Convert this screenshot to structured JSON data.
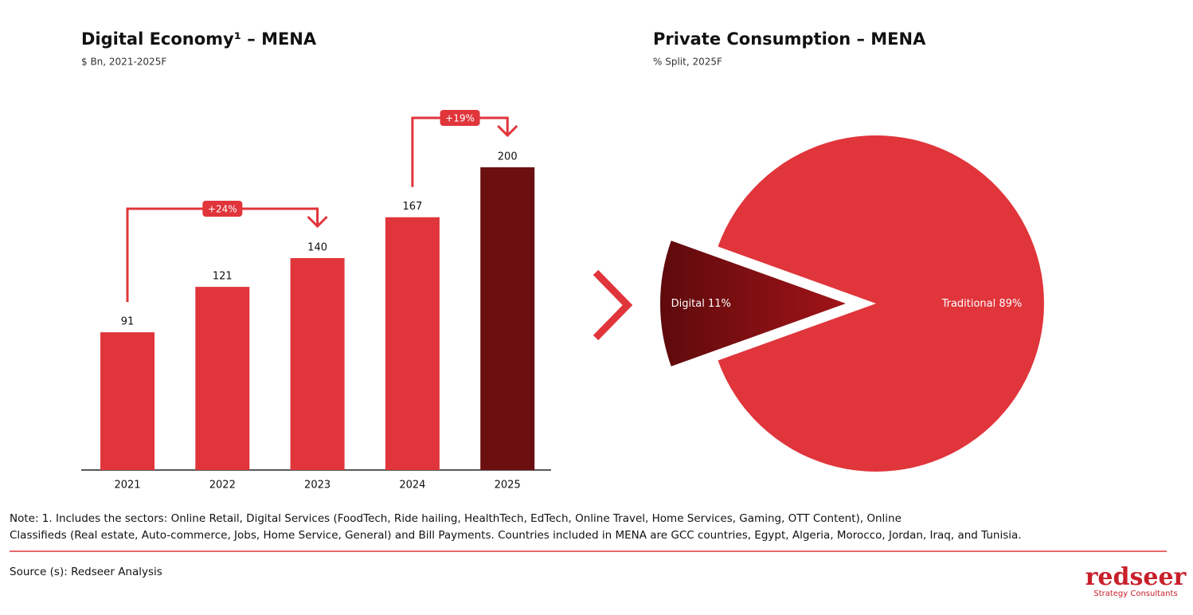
{
  "chart_data": [
    {
      "type": "bar",
      "title": "Digital Economy¹ – MENA",
      "subtitle": "$ Bn, 2021-2025F",
      "categories": [
        "2021",
        "2022",
        "2023",
        "2024",
        "2025"
      ],
      "values": [
        91,
        121,
        140,
        167,
        200
      ],
      "colors": [
        "#e0353b",
        "#e0353b",
        "#e0353b",
        "#e0353b",
        "#6b0f10"
      ],
      "annotations": [
        "+24%",
        "+19%"
      ]
    },
    {
      "type": "pie",
      "title": "Private Consumption – MENA",
      "subtitle": "% Split, 2025F",
      "categories": [
        "Digital",
        "Traditional"
      ],
      "values": [
        11,
        89
      ],
      "value_labels": [
        "11%",
        "89%"
      ],
      "colors": [
        "#7a0f12",
        "#e0353b"
      ]
    }
  ],
  "note": [
    "Note: 1. Includes the sectors: Online Retail, Digital Services (FoodTech, Ride hailing, HealthTech, EdTech, Online Travel, Home Services, Gaming, OTT Content), Online",
    "Classifieds (Real estate, Auto-commerce, Jobs, Home Service, General) and Bill Payments. Countries included in MENA are GCC countries, Egypt, Algeria, Morocco, Jordan, Iraq, and Tunisia."
  ],
  "source": "Source (s): Redseer Analysis",
  "logo": {
    "name": "redseer",
    "tagline": "Strategy Consultants"
  }
}
